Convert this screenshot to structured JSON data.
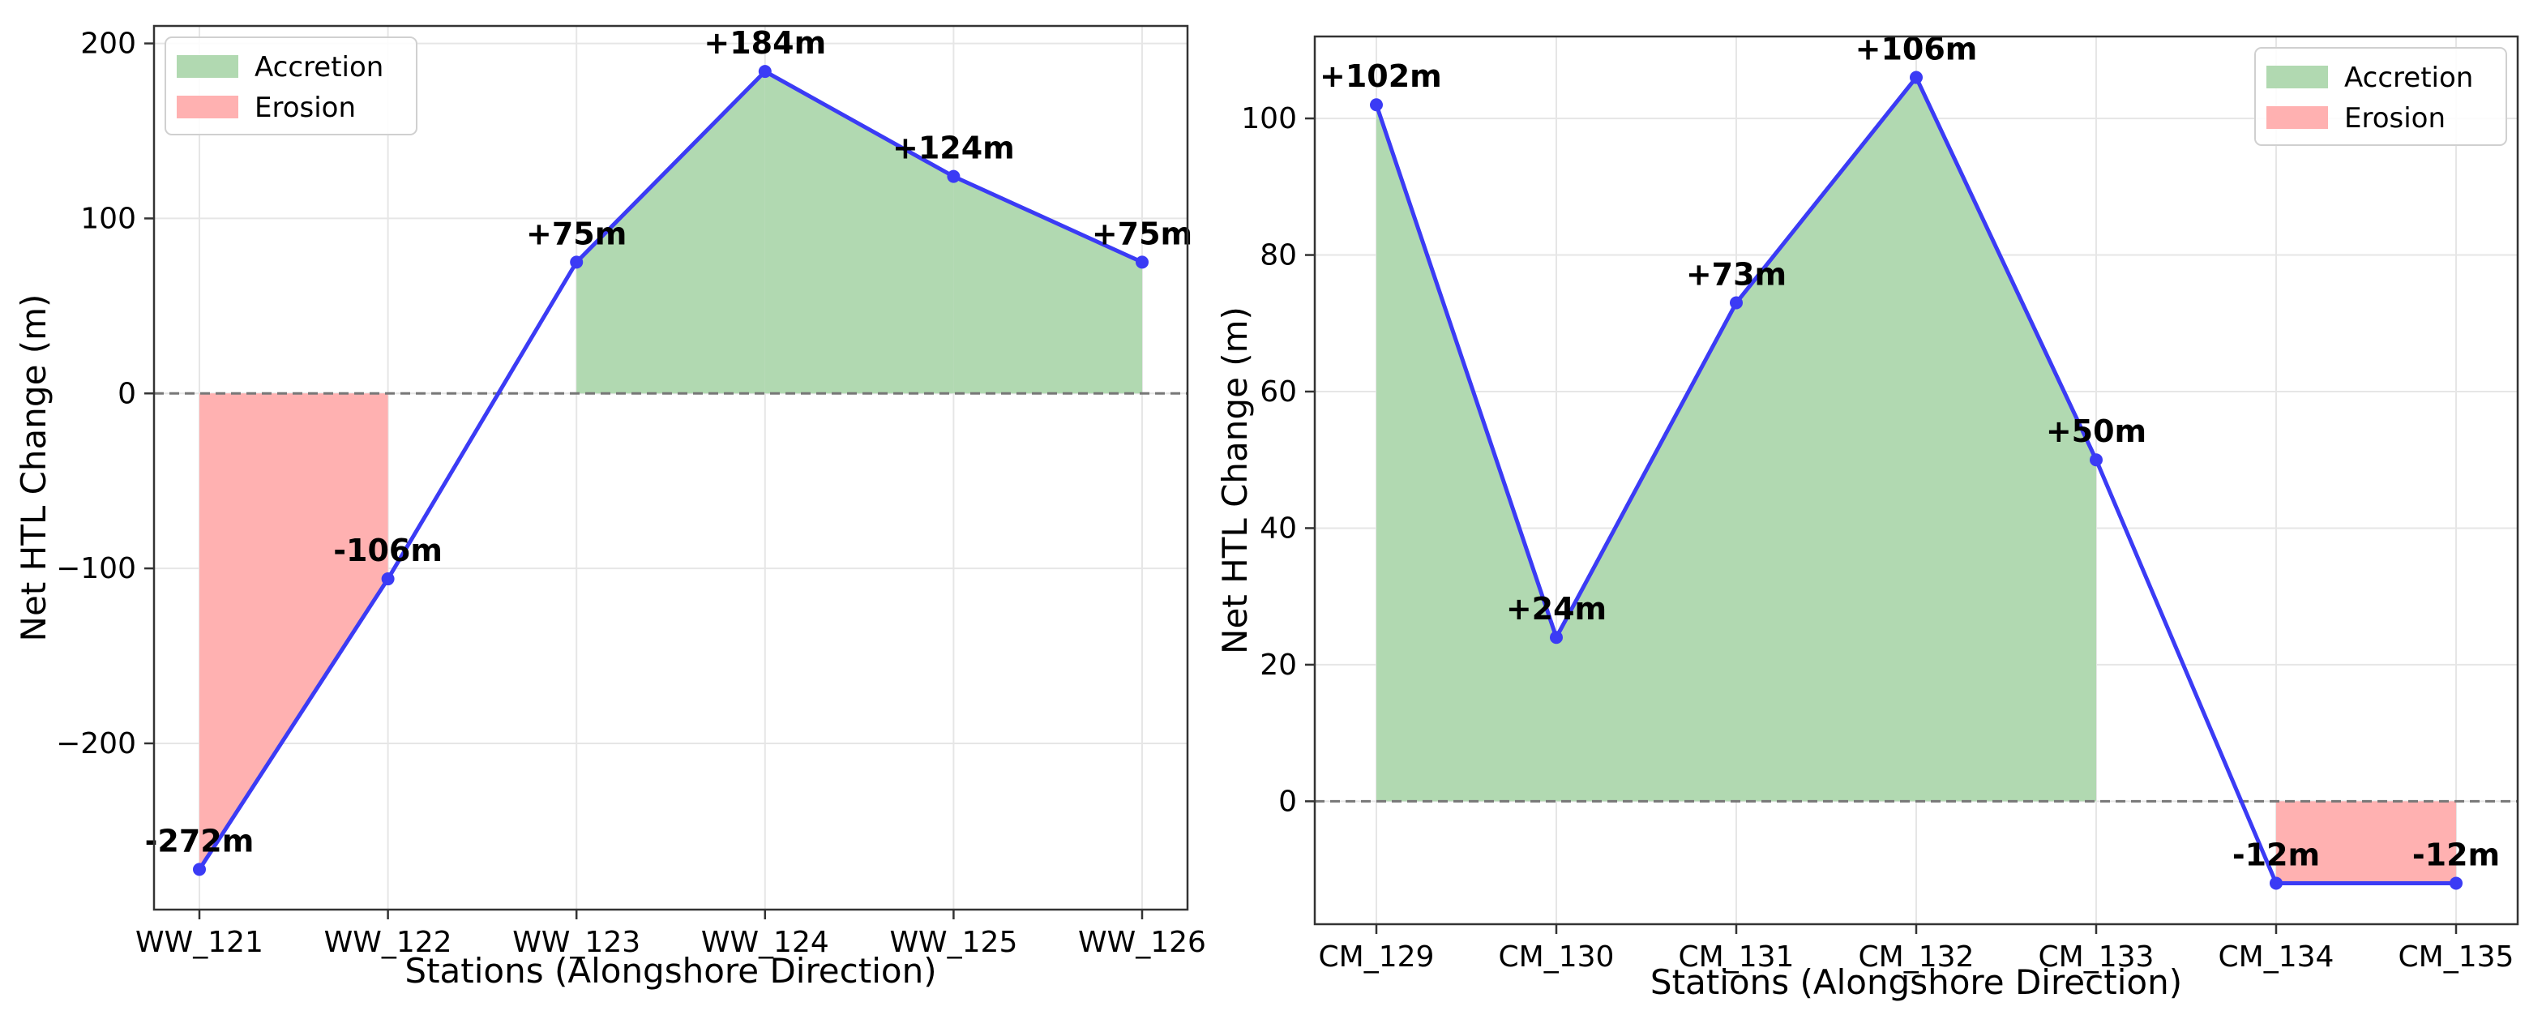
{
  "chart_data": [
    {
      "type": "line",
      "xlabel": "Stations (Alongshore Direction)",
      "ylabel": "Net HTL Change (m)",
      "categories": [
        "WW_121",
        "WW_122",
        "WW_123",
        "WW_124",
        "WW_125",
        "WW_126"
      ],
      "values": [
        -272,
        -106,
        75,
        184,
        124,
        75
      ],
      "data_labels": [
        "-272m",
        "-106m",
        "+75m",
        "+184m",
        "+124m",
        "+75m"
      ],
      "ylim": [
        -295,
        210
      ],
      "yticks": [
        -200,
        -100,
        0,
        100,
        200
      ],
      "ytick_labels": [
        "−200",
        "−100",
        "0",
        "100",
        "200"
      ],
      "grid": true,
      "legend_position": "top-left",
      "legend": [
        {
          "name": "Accretion",
          "color": "#b1d9b1"
        },
        {
          "name": "Erosion",
          "color": "#ffb1b1"
        }
      ],
      "colors": {
        "line": "#3b3bf5",
        "accretion": "#b1d9b1",
        "erosion": "#ffb1b1",
        "zero_line": "#777777"
      }
    },
    {
      "type": "line",
      "xlabel": "Stations (Alongshore Direction)",
      "ylabel": "Net HTL Change (m)",
      "categories": [
        "CM_129",
        "CM_130",
        "CM_131",
        "CM_132",
        "CM_133",
        "CM_134",
        "CM_135"
      ],
      "values": [
        102,
        24,
        73,
        106,
        50,
        -12,
        -12
      ],
      "data_labels": [
        "+102m",
        "+24m",
        "+73m",
        "+106m",
        "+50m",
        "-12m",
        "-12m"
      ],
      "ylim": [
        -18,
        112
      ],
      "yticks": [
        0,
        20,
        40,
        60,
        80,
        100
      ],
      "ytick_labels": [
        "0",
        "20",
        "40",
        "60",
        "80",
        "100"
      ],
      "grid": true,
      "legend_position": "top-right",
      "legend": [
        {
          "name": "Accretion",
          "color": "#b1d9b1"
        },
        {
          "name": "Erosion",
          "color": "#ffb1b1"
        }
      ],
      "colors": {
        "line": "#3b3bf5",
        "accretion": "#b1d9b1",
        "erosion": "#ffb1b1",
        "zero_line": "#777777"
      }
    }
  ]
}
